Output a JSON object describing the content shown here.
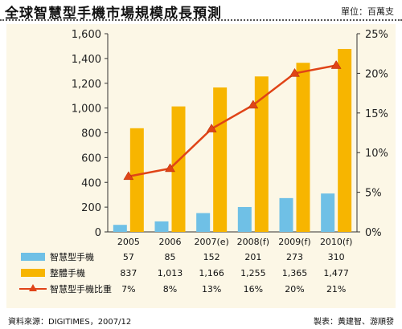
{
  "header": {
    "title": "全球智慧型手機市場規模成長預測",
    "unit": "單位：百萬支"
  },
  "footer": {
    "source": "資料來源：DIGITIMES，2007/12",
    "credit": "製表：黃建智、游順發"
  },
  "colors": {
    "smartphone_bar": "#6fc0e6",
    "total_bar": "#f7b500",
    "ratio_line": "#e04417",
    "ratio_marker": "#f0a000",
    "panel": "#fcf7e6"
  },
  "chart_data": {
    "type": "bar",
    "categories": [
      "2005",
      "2006",
      "2007(e)",
      "2008(f)",
      "2009(f)",
      "2010(f)"
    ],
    "series": [
      {
        "name": "智慧型手機",
        "values": [
          57,
          85,
          152,
          201,
          273,
          310
        ],
        "labels": [
          "57",
          "85",
          "152",
          "201",
          "273",
          "310"
        ]
      },
      {
        "name": "整體手機",
        "values": [
          837,
          1013,
          1166,
          1255,
          1365,
          1477
        ],
        "labels": [
          "837",
          "1,013",
          "1,166",
          "1,255",
          "1,365",
          "1,477"
        ]
      }
    ],
    "line_series": [
      {
        "name": "智慧型手機比重",
        "values": [
          7,
          8,
          13,
          16,
          20,
          21
        ],
        "labels": [
          "7%",
          "8%",
          "13%",
          "16%",
          "20%",
          "21%"
        ],
        "axis": "right"
      }
    ],
    "ylim": [
      0,
      1600
    ],
    "yticks": [
      "0",
      "200",
      "400",
      "600",
      "800",
      "1,000",
      "1,200",
      "1,400",
      "1,600"
    ],
    "y2lim": [
      0,
      25
    ],
    "y2ticks": [
      "0%",
      "5%",
      "10%",
      "15%",
      "20%",
      "25%"
    ],
    "data_table": true,
    "grid": false
  }
}
